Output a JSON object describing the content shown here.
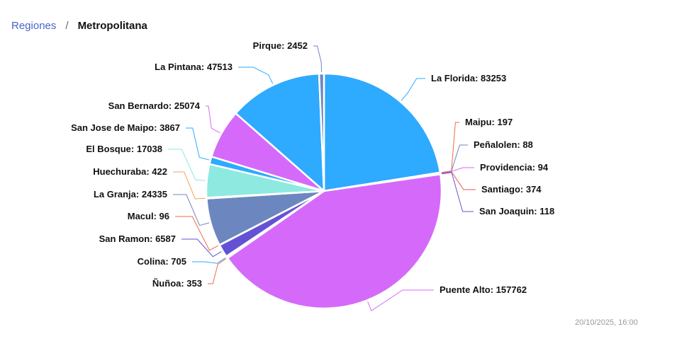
{
  "breadcrumb": {
    "parent": "Regiones",
    "separator": "/",
    "current": "Metropolitana"
  },
  "timestamp": "20/10/2025, 16:00",
  "chart_data": {
    "type": "pie",
    "title": "",
    "slices": [
      {
        "label": "La Florida",
        "value": 83253,
        "color": "#2eaaff"
      },
      {
        "label": "Maipu",
        "value": 197,
        "color": "#f06a45"
      },
      {
        "label": "Peñalolen",
        "value": 88,
        "color": "#6c87c0"
      },
      {
        "label": "Providencia",
        "value": 94,
        "color": "#d966f2"
      },
      {
        "label": "Santiago",
        "value": 374,
        "color": "#f05050"
      },
      {
        "label": "San Joaquin",
        "value": 118,
        "color": "#6a56c8"
      },
      {
        "label": "Puente Alto",
        "value": 157762,
        "color": "#d56afa"
      },
      {
        "label": "Ñuñoa",
        "value": 353,
        "color": "#f06a45"
      },
      {
        "label": "Colina",
        "value": 705,
        "color": "#2eaaff"
      },
      {
        "label": "San Ramon",
        "value": 6587,
        "color": "#6452d4"
      },
      {
        "label": "Macul",
        "value": 96,
        "color": "#f06a45"
      },
      {
        "label": "La Granja",
        "value": 24335,
        "color": "#6c87c0"
      },
      {
        "label": "Huechuraba",
        "value": 422,
        "color": "#f5a25a"
      },
      {
        "label": "El Bosque",
        "value": 17038,
        "color": "#8ee9e0"
      },
      {
        "label": "San Jose de Maipo",
        "value": 3867,
        "color": "#2eaaff"
      },
      {
        "label": "San Bernardo",
        "value": 25074,
        "color": "#d56afa"
      },
      {
        "label": "La Pintana",
        "value": 47513,
        "color": "#2eaaff"
      },
      {
        "label": "Pirque",
        "value": 2452,
        "color": "#6c87c0"
      }
    ]
  }
}
